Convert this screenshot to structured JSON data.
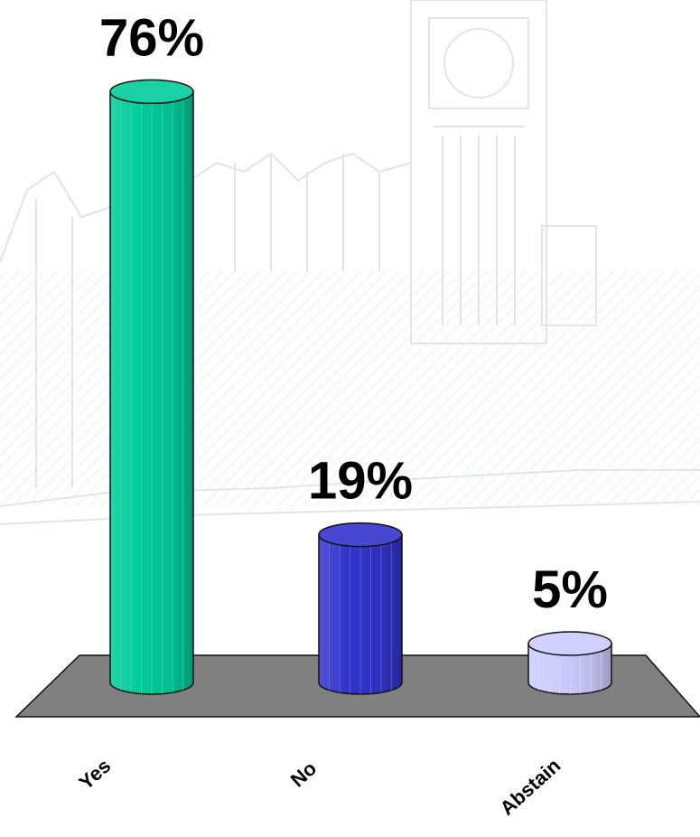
{
  "chart_data": {
    "type": "bar",
    "style": "3d-cylinder",
    "categories": [
      "Yes",
      "No",
      "Abstain"
    ],
    "values": [
      76,
      19,
      5
    ],
    "value_labels": [
      "76%",
      "19%",
      "5%"
    ],
    "unit": "%",
    "ylim": [
      0,
      80
    ],
    "grid": false,
    "legend": "none",
    "colors": {
      "Yes": "#00CC99",
      "No": "#3333CC",
      "Abstain": "#CCCCFF"
    },
    "floor_color": "#808080",
    "background_image": "faint sketch of Westminster / Big Ben skyline"
  }
}
